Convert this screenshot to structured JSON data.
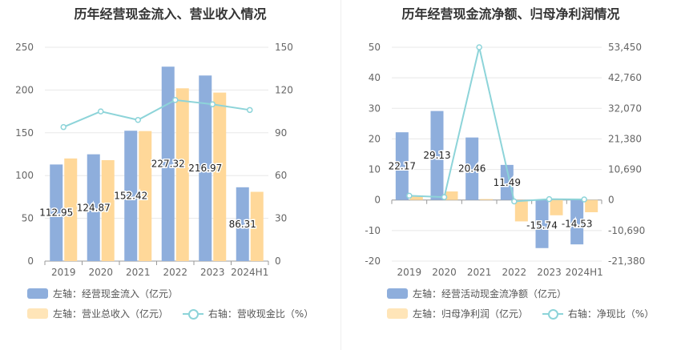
{
  "colors": {
    "blue": "#8eaedc",
    "orange": "#ffd899",
    "teal": "#8dd4d9",
    "grid": "#e8e8e8",
    "axis": "#999999"
  },
  "chart_data": [
    {
      "type": "bar",
      "title": "历年经营现金流入、营业收入情况",
      "categories": [
        "2019",
        "2020",
        "2021",
        "2022",
        "2023",
        "2024H1"
      ],
      "series": [
        {
          "name": "左轴：经营现金流入（亿元）",
          "axis": "left",
          "values": [
            112.95,
            124.87,
            152.42,
            227.32,
            216.97,
            86.31
          ],
          "labels": [
            "112.95",
            "124.87",
            "152.42",
            "227.32",
            "216.97",
            "86.31"
          ]
        },
        {
          "name": "左轴：营业总收入（亿元）",
          "axis": "left",
          "values": [
            120,
            118,
            152,
            202,
            197,
            81
          ]
        },
        {
          "name": "右轴：营收现金比（%）",
          "axis": "right",
          "type": "line",
          "values": [
            94,
            105,
            99,
            113,
            110,
            106
          ]
        }
      ],
      "left_axis": {
        "min": 0,
        "max": 250,
        "ticks": [
          "0",
          "50",
          "100",
          "150",
          "200",
          "250"
        ]
      },
      "right_axis": {
        "min": 0,
        "max": 150,
        "ticks": [
          "0",
          "30",
          "60",
          "90",
          "120",
          "150"
        ]
      },
      "legend": {
        "position": "bottom"
      }
    },
    {
      "type": "bar",
      "title": "历年经营现金流净额、归母净利润情况",
      "categories": [
        "2019",
        "2020",
        "2021",
        "2022",
        "2023",
        "2024H1"
      ],
      "series": [
        {
          "name": "左轴：经营活动现金流净额（亿元）",
          "axis": "left",
          "values": [
            22.17,
            29.13,
            20.46,
            11.49,
            -15.74,
            -14.53
          ],
          "labels": [
            "22.17",
            "29.13",
            "20.46",
            "11.49",
            "-15.74",
            "-14.53"
          ]
        },
        {
          "name": "左轴：归母净利润（亿元）",
          "axis": "left",
          "values": [
            1.5,
            2.8,
            0.3,
            -7.0,
            -5.0,
            -4.0
          ]
        },
        {
          "name": "右轴：净现比（%）",
          "axis": "right",
          "type": "line",
          "values": [
            1500,
            1000,
            53450,
            -500,
            300,
            200
          ]
        }
      ],
      "left_axis": {
        "min": -20,
        "max": 50,
        "ticks": [
          "-20",
          "-10",
          "0",
          "10",
          "20",
          "30",
          "40",
          "50"
        ]
      },
      "right_axis": {
        "min": -21380,
        "max": 53450,
        "ticks": [
          "-21,380",
          "-10,690",
          "0",
          "10,690",
          "21,380",
          "32,070",
          "42,760",
          "53,450"
        ]
      },
      "legend": {
        "position": "bottom"
      }
    }
  ]
}
